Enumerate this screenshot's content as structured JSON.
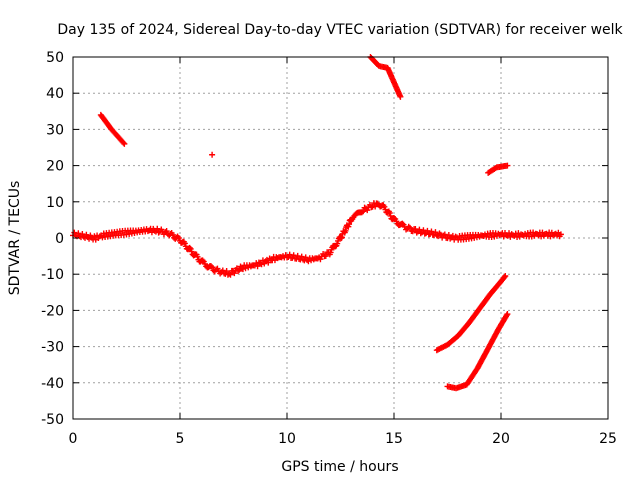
{
  "chart_data": {
    "type": "scatter",
    "title": "Day 135 of 2024, Sidereal Day-to-day VTEC variation (SDTVAR) for receiver welk",
    "xlabel": "GPS time / hours",
    "ylabel": "SDTVAR / TECUs",
    "xlim": [
      0,
      25
    ],
    "ylim": [
      -50,
      50
    ],
    "grid": true,
    "legend": "none",
    "colors": {
      "series": "#ff0000",
      "grid": "#a0a0a0",
      "axis": "#000000"
    },
    "x_ticks": [
      0,
      5,
      10,
      15,
      20,
      25
    ],
    "x_tick_labels": [
      "0",
      "5",
      "10",
      "15",
      "20",
      "25"
    ],
    "y_ticks": [
      -50,
      -40,
      -30,
      -20,
      -10,
      0,
      10,
      20,
      30,
      40,
      50
    ],
    "y_tick_labels": [
      "-50",
      "-40",
      "-30",
      "-20",
      "-10",
      "0",
      "10",
      "20",
      "30",
      "40",
      "50"
    ],
    "series": [
      {
        "name": "main-trace",
        "x": [
          0,
          0.5,
          1,
          1.5,
          2,
          2.5,
          3,
          3.5,
          4,
          4.5,
          5,
          5.5,
          6,
          6.5,
          7,
          7.3,
          7.6,
          8,
          8.5,
          9,
          9.5,
          10,
          10.5,
          11,
          11.5,
          12,
          12.5,
          13,
          13.5,
          14,
          14.3,
          14.6,
          15,
          15.5,
          16,
          16.5,
          17,
          17.5,
          18,
          18.5,
          19,
          19.5,
          20,
          20.5,
          21,
          21.5,
          22,
          22.5,
          22.8
        ],
        "y": [
          1,
          0.5,
          0,
          0.8,
          1.2,
          1.5,
          1.8,
          2.2,
          2,
          1.2,
          -0.5,
          -3.5,
          -6.5,
          -8.5,
          -9.5,
          -9.8,
          -9,
          -8,
          -7.5,
          -6.5,
          -5.5,
          -5,
          -5.5,
          -6,
          -5.5,
          -4,
          0,
          5,
          7.5,
          9,
          9.5,
          8,
          5,
          3,
          2,
          1.5,
          1,
          0.3,
          0,
          0.3,
          0.6,
          0.8,
          1,
          0.8,
          0.8,
          1,
          1,
          1,
          1
        ]
      },
      {
        "name": "arc-a",
        "x": [
          1.3,
          1.8,
          2.4
        ],
        "y": [
          34,
          30,
          26
        ]
      },
      {
        "name": "arc-b",
        "x": [
          6.5
        ],
        "y": [
          23
        ]
      },
      {
        "name": "arc-c",
        "x": [
          13.9,
          14.3,
          14.7,
          15,
          15.3
        ],
        "y": [
          50,
          47.5,
          47,
          43,
          39
        ]
      },
      {
        "name": "arc-d",
        "x": [
          19.4,
          19.8,
          20.3
        ],
        "y": [
          18,
          19.5,
          20
        ]
      },
      {
        "name": "arc-e",
        "x": [
          17,
          17.5,
          18,
          18.5,
          19,
          19.5,
          20,
          20.2
        ],
        "y": [
          -31,
          -29.5,
          -27,
          -23.5,
          -19.5,
          -15.5,
          -12,
          -10.5
        ]
      },
      {
        "name": "arc-f",
        "x": [
          17.5,
          17.9,
          18.4,
          18.9,
          19.4,
          19.9,
          20.3
        ],
        "y": [
          -41,
          -41.5,
          -40.5,
          -36,
          -30.5,
          -25,
          -21
        ]
      }
    ]
  }
}
